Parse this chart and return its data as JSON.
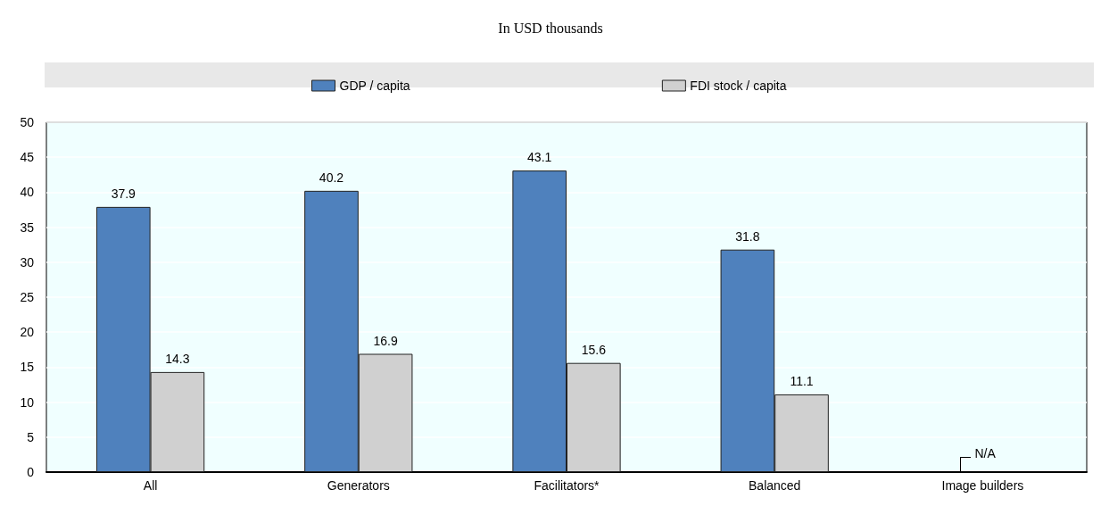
{
  "chart_data": {
    "type": "bar",
    "title": "In USD thousands",
    "categories": [
      "All",
      "Generators",
      "Facilitators*",
      "Balanced",
      "Image builders"
    ],
    "series": [
      {
        "name": "GDP / capita",
        "color": "#4f81bd",
        "values": [
          37.9,
          40.2,
          43.1,
          31.8,
          null
        ]
      },
      {
        "name": "FDI stock / capita",
        "color": "#d0d0d0",
        "values": [
          14.3,
          16.9,
          15.6,
          11.1,
          null
        ]
      }
    ],
    "ylim": [
      0,
      50
    ],
    "yticks": [
      0,
      5,
      10,
      15,
      20,
      25,
      30,
      35,
      40,
      45,
      50
    ],
    "data_labels": true,
    "grid": "y",
    "legend": "top",
    "annotations": [
      "N/A"
    ]
  }
}
